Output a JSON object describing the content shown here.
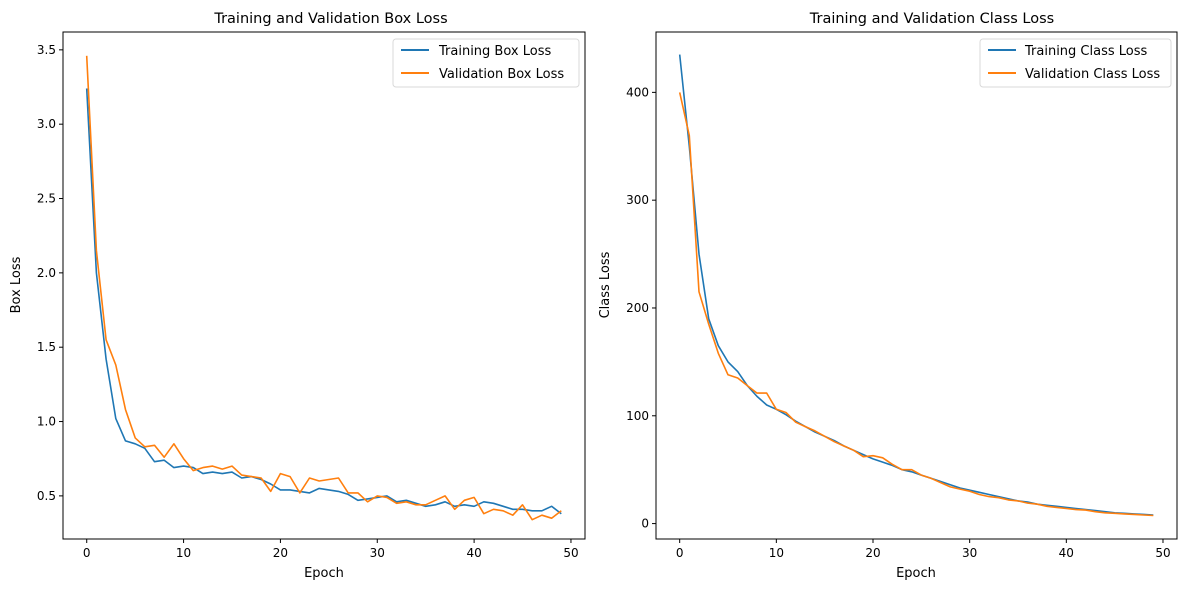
{
  "colors": {
    "training": "#1f77b4",
    "validation": "#ff7f0e"
  },
  "chart_data": [
    {
      "type": "line",
      "title": "Training and Validation Box Loss",
      "xlabel": "Epoch",
      "ylabel": "Box Loss",
      "xlim": [
        -2.45,
        51.45
      ],
      "ylim": [
        0.21,
        3.62
      ],
      "xticks": [
        0,
        10,
        20,
        30,
        40,
        50
      ],
      "yticks": [
        0.5,
        1.0,
        1.5,
        2.0,
        2.5,
        3.0,
        3.5
      ],
      "ytick_labels": [
        "0.5",
        "1.0",
        "1.5",
        "2.0",
        "2.5",
        "3.0",
        "3.5"
      ],
      "grid": false,
      "legend": "top-right",
      "x": [
        0,
        1,
        2,
        3,
        4,
        5,
        6,
        7,
        8,
        9,
        10,
        11,
        12,
        13,
        14,
        15,
        16,
        17,
        18,
        19,
        20,
        21,
        22,
        23,
        24,
        25,
        26,
        27,
        28,
        29,
        30,
        31,
        32,
        33,
        34,
        35,
        36,
        37,
        38,
        39,
        40,
        41,
        42,
        43,
        44,
        45,
        46,
        47,
        48,
        49
      ],
      "series": [
        {
          "name": "Training Box Loss",
          "values": [
            3.24,
            2.0,
            1.42,
            1.02,
            0.87,
            0.85,
            0.82,
            0.73,
            0.74,
            0.69,
            0.7,
            0.69,
            0.65,
            0.66,
            0.65,
            0.66,
            0.62,
            0.63,
            0.61,
            0.58,
            0.54,
            0.54,
            0.53,
            0.52,
            0.55,
            0.54,
            0.53,
            0.51,
            0.47,
            0.48,
            0.49,
            0.5,
            0.46,
            0.47,
            0.45,
            0.43,
            0.44,
            0.46,
            0.43,
            0.44,
            0.43,
            0.46,
            0.45,
            0.43,
            0.41,
            0.41,
            0.4,
            0.4,
            0.43,
            0.38
          ]
        },
        {
          "name": "Validation Box Loss",
          "values": [
            3.46,
            2.15,
            1.55,
            1.38,
            1.08,
            0.89,
            0.83,
            0.84,
            0.76,
            0.85,
            0.75,
            0.67,
            0.69,
            0.7,
            0.68,
            0.7,
            0.64,
            0.63,
            0.62,
            0.53,
            0.65,
            0.63,
            0.52,
            0.62,
            0.6,
            0.61,
            0.62,
            0.52,
            0.52,
            0.46,
            0.5,
            0.49,
            0.45,
            0.46,
            0.44,
            0.44,
            0.47,
            0.5,
            0.41,
            0.47,
            0.49,
            0.38,
            0.41,
            0.4,
            0.37,
            0.44,
            0.34,
            0.37,
            0.35,
            0.4
          ]
        }
      ]
    },
    {
      "type": "line",
      "title": "Training and Validation Class Loss",
      "xlabel": "Epoch",
      "ylabel": "Class Loss",
      "xlim": [
        -2.45,
        51.45
      ],
      "ylim": [
        -14.3,
        456
      ],
      "xticks": [
        0,
        10,
        20,
        30,
        40,
        50
      ],
      "yticks": [
        0,
        100,
        200,
        300,
        400
      ],
      "ytick_labels": [
        "0",
        "100",
        "200",
        "300",
        "400"
      ],
      "grid": false,
      "legend": "top-right",
      "x": [
        0,
        1,
        2,
        3,
        4,
        5,
        6,
        7,
        8,
        9,
        10,
        11,
        12,
        13,
        14,
        15,
        16,
        17,
        18,
        19,
        20,
        21,
        22,
        23,
        24,
        25,
        26,
        27,
        28,
        29,
        30,
        31,
        32,
        33,
        34,
        35,
        36,
        37,
        38,
        39,
        40,
        41,
        42,
        43,
        44,
        45,
        46,
        47,
        48,
        49
      ],
      "series": [
        {
          "name": "Training Class Loss",
          "values": [
            435,
            350,
            250,
            190,
            165,
            150,
            141,
            128,
            118,
            110,
            106,
            101,
            95,
            90,
            85,
            81,
            77,
            72,
            68,
            64,
            60,
            57,
            54,
            50,
            48,
            45,
            42,
            39,
            36,
            33,
            31,
            29,
            27,
            25,
            23,
            21,
            20,
            18,
            17,
            16,
            15,
            14,
            13,
            12,
            11,
            10,
            9.5,
            9,
            8.5,
            8
          ]
        },
        {
          "name": "Validation Class Loss",
          "values": [
            400,
            360,
            215,
            185,
            158,
            138,
            135,
            128,
            121,
            121,
            106,
            103,
            94,
            90,
            86,
            81,
            76,
            72,
            68,
            62,
            63,
            61,
            55,
            50,
            50,
            45,
            42,
            38,
            34,
            32,
            30,
            27,
            25,
            24,
            22,
            21,
            19,
            18,
            16,
            15,
            14,
            13,
            12.5,
            11,
            10,
            9.5,
            9,
            8.5,
            8,
            7.5
          ]
        }
      ]
    }
  ]
}
